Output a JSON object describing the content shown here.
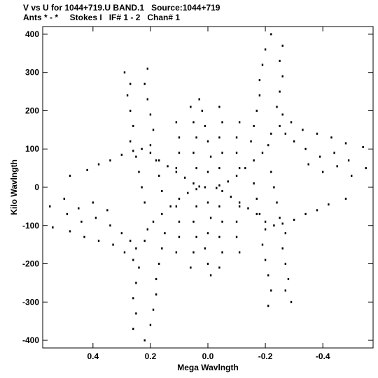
{
  "chart_data": {
    "type": "scatter",
    "title": "V vs U for 1044+719.U BAND.1   Source:1044+719",
    "subtitle": "Ants * - *     Stokes I   IF# 1 - 2   Chan# 1",
    "xlabel": "Mega Wavlngth",
    "ylabel": "Kilo Wavlngth",
    "xlim": [
      0.575,
      -0.575
    ],
    "ylim": [
      -420,
      420
    ],
    "xticks": [
      0.4,
      0.2,
      0.0,
      -0.2,
      -0.4
    ],
    "xtick_labels": [
      "0.4",
      "0.2",
      "0.0",
      "-0.2",
      "-0.4"
    ],
    "yticks": [
      400,
      300,
      200,
      100,
      0,
      -100,
      -200,
      -300,
      -400
    ],
    "ytick_labels": [
      "400",
      "300",
      "200",
      "100",
      "0",
      "-100",
      "-200",
      "-300",
      "-400"
    ],
    "grid": false,
    "legend": "none",
    "series": [
      {
        "marker_color": "#000000",
        "points": [
          [
            0.55,
            -50
          ],
          [
            0.54,
            -105
          ],
          [
            0.5,
            -30
          ],
          [
            0.49,
            -70
          ],
          [
            0.48,
            -115
          ],
          [
            0.45,
            -55
          ],
          [
            0.44,
            -90
          ],
          [
            0.43,
            -130
          ],
          [
            0.4,
            -40
          ],
          [
            0.39,
            -80
          ],
          [
            0.38,
            -140
          ],
          [
            0.35,
            -60
          ],
          [
            0.34,
            -100
          ],
          [
            0.33,
            -150
          ],
          [
            0.3,
            -120
          ],
          [
            0.29,
            -170
          ],
          [
            0.27,
            -140
          ],
          [
            0.26,
            -190
          ],
          [
            0.25,
            -160
          ],
          [
            0.22,
            -140
          ],
          [
            0.21,
            -110
          ],
          [
            0.19,
            -90
          ],
          [
            0.16,
            -70
          ],
          [
            0.13,
            -50
          ],
          [
            0.1,
            -30
          ],
          [
            0.07,
            -15
          ],
          [
            0.04,
            -5
          ],
          [
            0.48,
            30
          ],
          [
            0.42,
            45
          ],
          [
            0.38,
            60
          ],
          [
            0.34,
            70
          ],
          [
            0.3,
            85
          ],
          [
            0.26,
            95
          ],
          [
            0.23,
            100
          ],
          [
            0.2,
            90
          ],
          [
            0.17,
            70
          ],
          [
            0.14,
            55
          ],
          [
            0.11,
            40
          ],
          [
            0.08,
            25
          ],
          [
            0.05,
            10
          ],
          [
            0.03,
            2
          ],
          [
            0.29,
            300
          ],
          [
            0.27,
            270
          ],
          [
            0.28,
            240
          ],
          [
            0.27,
            200
          ],
          [
            0.26,
            160
          ],
          [
            0.27,
            120
          ],
          [
            0.25,
            80
          ],
          [
            0.24,
            40
          ],
          [
            0.23,
            0
          ],
          [
            0.22,
            -40
          ],
          [
            0.21,
            310
          ],
          [
            0.22,
            270
          ],
          [
            0.21,
            230
          ],
          [
            0.2,
            190
          ],
          [
            0.19,
            150
          ],
          [
            0.2,
            110
          ],
          [
            0.18,
            70
          ],
          [
            0.17,
            30
          ],
          [
            0.16,
            -10
          ],
          [
            0.26,
            -370
          ],
          [
            0.25,
            -330
          ],
          [
            0.26,
            -290
          ],
          [
            0.25,
            -250
          ],
          [
            0.24,
            -210
          ],
          [
            0.22,
            -400
          ],
          [
            0.2,
            -360
          ],
          [
            0.19,
            -320
          ],
          [
            0.18,
            -280
          ],
          [
            0.18,
            -240
          ],
          [
            0.17,
            -200
          ],
          [
            0.16,
            -160
          ],
          [
            0.15,
            -120
          ],
          [
            0.03,
            230
          ],
          [
            0.02,
            200
          ],
          [
            0.01,
            160
          ],
          [
            0.0,
            120
          ],
          [
            -0.01,
            80
          ],
          [
            0.0,
            40
          ],
          [
            0.01,
            0
          ],
          [
            0.0,
            -40
          ],
          [
            -0.01,
            -80
          ],
          [
            0.0,
            -120
          ],
          [
            0.01,
            -160
          ],
          [
            0.0,
            -200
          ],
          [
            -0.01,
            -230
          ],
          [
            0.06,
            210
          ],
          [
            0.05,
            170
          ],
          [
            0.04,
            130
          ],
          [
            0.05,
            90
          ],
          [
            0.04,
            50
          ],
          [
            -0.04,
            210
          ],
          [
            -0.05,
            170
          ],
          [
            -0.04,
            130
          ],
          [
            -0.05,
            90
          ],
          [
            -0.04,
            50
          ],
          [
            0.06,
            -210
          ],
          [
            0.05,
            -170
          ],
          [
            0.04,
            -130
          ],
          [
            0.05,
            -90
          ],
          [
            0.04,
            -50
          ],
          [
            -0.04,
            -210
          ],
          [
            -0.05,
            -170
          ],
          [
            -0.04,
            -130
          ],
          [
            -0.05,
            -90
          ],
          [
            -0.04,
            -50
          ],
          [
            0.11,
            170
          ],
          [
            0.1,
            130
          ],
          [
            0.1,
            90
          ],
          [
            0.11,
            50
          ],
          [
            -0.11,
            170
          ],
          [
            -0.1,
            130
          ],
          [
            -0.1,
            90
          ],
          [
            -0.11,
            50
          ],
          [
            0.11,
            -170
          ],
          [
            0.1,
            -130
          ],
          [
            0.1,
            -90
          ],
          [
            0.11,
            -50
          ],
          [
            -0.11,
            -170
          ],
          [
            -0.1,
            -130
          ],
          [
            -0.1,
            -90
          ],
          [
            -0.11,
            -50
          ],
          [
            -0.55,
            50
          ],
          [
            -0.54,
            105
          ],
          [
            -0.5,
            30
          ],
          [
            -0.49,
            70
          ],
          [
            -0.48,
            115
          ],
          [
            -0.45,
            55
          ],
          [
            -0.44,
            90
          ],
          [
            -0.43,
            130
          ],
          [
            -0.4,
            40
          ],
          [
            -0.39,
            80
          ],
          [
            -0.38,
            140
          ],
          [
            -0.35,
            60
          ],
          [
            -0.34,
            100
          ],
          [
            -0.33,
            150
          ],
          [
            -0.3,
            120
          ],
          [
            -0.29,
            170
          ],
          [
            -0.27,
            140
          ],
          [
            -0.26,
            190
          ],
          [
            -0.25,
            160
          ],
          [
            -0.22,
            140
          ],
          [
            -0.21,
            110
          ],
          [
            -0.19,
            90
          ],
          [
            -0.16,
            70
          ],
          [
            -0.13,
            50
          ],
          [
            -0.1,
            30
          ],
          [
            -0.07,
            15
          ],
          [
            -0.04,
            5
          ],
          [
            -0.48,
            -30
          ],
          [
            -0.42,
            -45
          ],
          [
            -0.38,
            -60
          ],
          [
            -0.34,
            -70
          ],
          [
            -0.3,
            -85
          ],
          [
            -0.26,
            -95
          ],
          [
            -0.23,
            -100
          ],
          [
            -0.2,
            -90
          ],
          [
            -0.17,
            -70
          ],
          [
            -0.14,
            -55
          ],
          [
            -0.11,
            -40
          ],
          [
            -0.08,
            -25
          ],
          [
            -0.05,
            -10
          ],
          [
            -0.03,
            -2
          ],
          [
            -0.29,
            -300
          ],
          [
            -0.27,
            -270
          ],
          [
            -0.28,
            -240
          ],
          [
            -0.27,
            -200
          ],
          [
            -0.26,
            -160
          ],
          [
            -0.27,
            -120
          ],
          [
            -0.25,
            -80
          ],
          [
            -0.24,
            -40
          ],
          [
            -0.23,
            0
          ],
          [
            -0.22,
            40
          ],
          [
            -0.21,
            -310
          ],
          [
            -0.22,
            -270
          ],
          [
            -0.21,
            -230
          ],
          [
            -0.2,
            -190
          ],
          [
            -0.19,
            -150
          ],
          [
            -0.2,
            -110
          ],
          [
            -0.18,
            -70
          ],
          [
            -0.17,
            -30
          ],
          [
            -0.16,
            10
          ],
          [
            -0.26,
            370
          ],
          [
            -0.25,
            330
          ],
          [
            -0.26,
            290
          ],
          [
            -0.25,
            250
          ],
          [
            -0.24,
            210
          ],
          [
            -0.22,
            400
          ],
          [
            -0.2,
            360
          ],
          [
            -0.19,
            320
          ],
          [
            -0.18,
            280
          ],
          [
            -0.18,
            240
          ],
          [
            -0.17,
            200
          ],
          [
            -0.16,
            160
          ],
          [
            -0.15,
            120
          ]
        ]
      }
    ]
  }
}
